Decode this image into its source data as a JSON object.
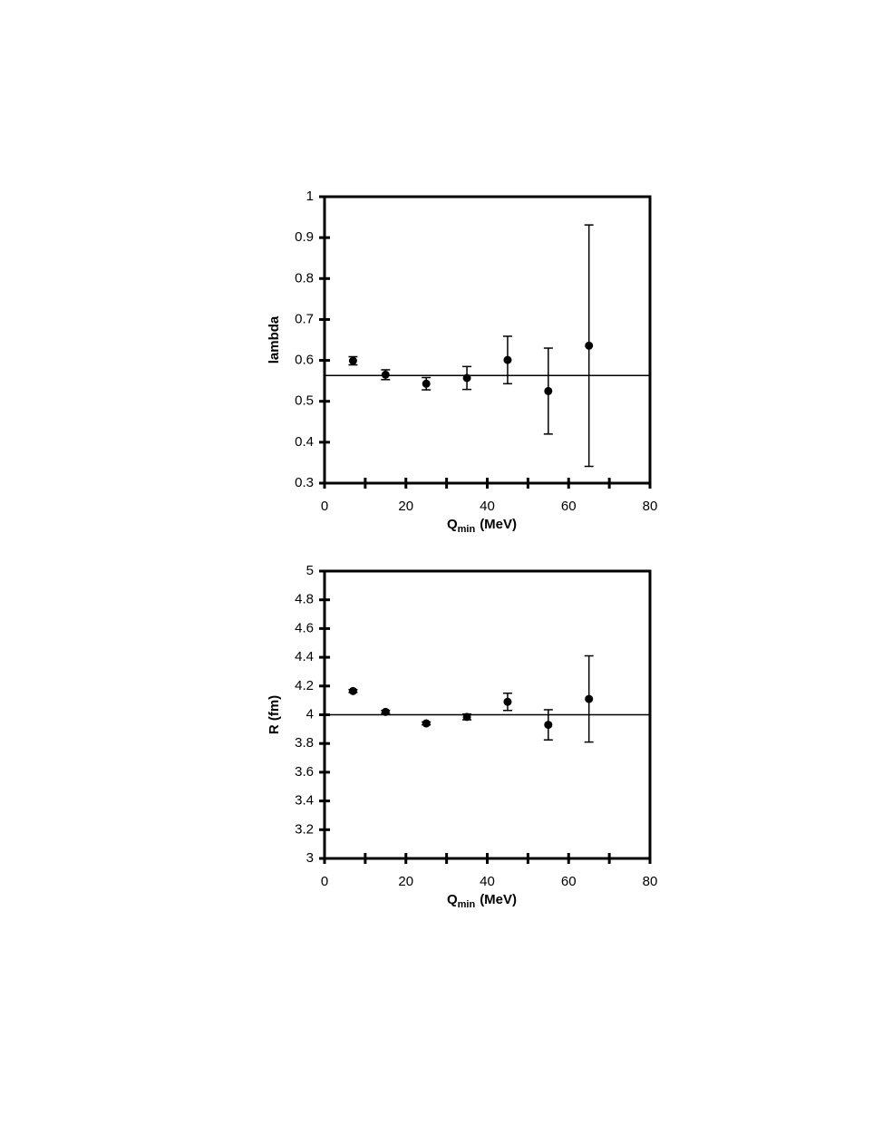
{
  "chart_data": [
    {
      "type": "scatter",
      "y_label": "lambda",
      "x_label": {
        "main": "Q",
        "sub": "min",
        "unit": "(MeV)"
      },
      "series": [
        {
          "color": "#000000",
          "x": [
            7,
            15,
            25,
            35,
            45,
            55,
            65
          ],
          "values": [
            0.599,
            0.565,
            0.543,
            0.557,
            0.601,
            0.525,
            0.636
          ],
          "errors": [
            0.01,
            0.012,
            0.015,
            0.028,
            0.058,
            0.105,
            0.295
          ]
        }
      ],
      "fit_line": 0.563,
      "xlim": [
        0,
        80
      ],
      "xticks": [
        0,
        20,
        40,
        60,
        80
      ],
      "xminorticks": [
        10,
        30,
        50,
        70
      ],
      "ylim": [
        0.3,
        1
      ],
      "yticks": [
        0.3,
        0.4,
        0.5,
        0.6,
        0.7,
        0.8,
        0.9,
        1
      ]
    },
    {
      "type": "scatter",
      "y_label": "R (fm)",
      "x_label": {
        "main": "Q",
        "sub": "min",
        "unit": "(MeV)"
      },
      "series": [
        {
          "color": "#000000",
          "x": [
            7,
            15,
            25,
            35,
            45,
            55,
            65
          ],
          "values": [
            4.165,
            4.02,
            3.94,
            3.985,
            4.09,
            3.93,
            4.11
          ],
          "errors": [
            0.01,
            0.01,
            0.01,
            0.02,
            0.06,
            0.105,
            0.3
          ]
        }
      ],
      "fit_line": 4,
      "xlim": [
        0,
        80
      ],
      "xticks": [
        0,
        20,
        40,
        60,
        80
      ],
      "xminorticks": [
        10,
        30,
        50,
        70
      ],
      "ylim": [
        3,
        5
      ],
      "yticks": [
        3,
        3.2,
        3.4,
        3.6,
        3.8,
        4,
        4.2,
        4.4,
        4.6,
        4.8,
        5
      ]
    }
  ]
}
